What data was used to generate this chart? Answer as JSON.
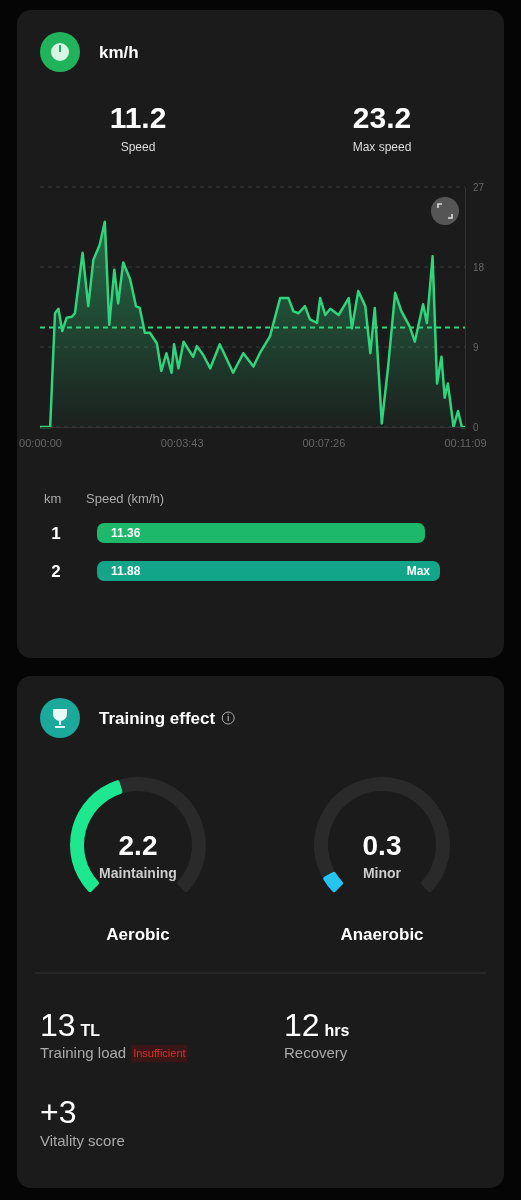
{
  "chart_data": [
    {
      "type": "area",
      "title": "km/h",
      "annotations": [
        "11.2",
        "Speed",
        "23.2",
        "Max speed"
      ],
      "x": [
        0,
        16,
        23.6,
        29,
        35,
        42,
        50,
        55,
        67,
        76,
        84,
        94,
        102,
        109,
        117,
        123,
        131,
        142,
        151,
        157,
        165,
        173,
        184,
        191,
        199,
        207,
        211,
        218,
        226,
        241,
        247,
        257,
        268,
        283,
        304,
        320,
        336,
        346,
        362,
        378,
        391,
        399,
        407,
        417,
        425,
        436,
        441,
        449,
        457,
        470,
        486,
        491,
        501,
        512,
        520,
        527,
        538,
        548,
        559,
        569,
        582,
        590,
        603,
        609,
        618,
        625,
        632,
        637,
        642,
        651,
        658,
        664,
        669
      ],
      "series": [
        {
          "color": "#2fd47c",
          "values": [
            0,
            0,
            12.8,
            13.3,
            10.8,
            12.3,
            12.4,
            12.8,
            19.6,
            13.6,
            18.8,
            20.5,
            23.1,
            11.5,
            17.7,
            13.9,
            18.5,
            16.6,
            13.6,
            13.4,
            10.6,
            10.6,
            9.4,
            6.3,
            8.3,
            6.1,
            9.3,
            6.6,
            9.6,
            7.9,
            9.1,
            8.1,
            6.6,
            9.3,
            6.1,
            8.3,
            6.8,
            8.3,
            10.2,
            14.5,
            14.5,
            13,
            12.8,
            13.6,
            12.1,
            11.7,
            14.5,
            12.6,
            13.3,
            12.6,
            14.5,
            11.1,
            15.3,
            13.6,
            8.3,
            13.4,
            0.4,
            6.8,
            15.1,
            13,
            11.3,
            9.6,
            13.8,
            11.7,
            19.2,
            4.9,
            7.9,
            3.3,
            4.9,
            0,
            1.8,
            0,
            0
          ]
        }
      ],
      "xlim": [
        0,
        669
      ],
      "xticks": [
        {
          "value": 0,
          "label": "00:00:00"
        },
        {
          "value": 223,
          "label": "00:03:43"
        },
        {
          "value": 446,
          "label": "00:07:26"
        },
        {
          "value": 669,
          "label": "00:11:09"
        }
      ],
      "ylim": [
        0,
        27
      ],
      "yticks": [
        0,
        9,
        18,
        27
      ],
      "grid": "y",
      "ref_lines": [
        {
          "axis": "y",
          "value": 11.2,
          "color": "#2fd47c",
          "line_style": "dashed"
        }
      ]
    },
    {
      "type": "bar",
      "orientation": "horizontal",
      "xlabel": "Speed (km/h)",
      "ylabel": "km",
      "categories": [
        "1",
        "2"
      ],
      "values": [
        11.36,
        11.88
      ],
      "colors": [
        "#1db86a",
        "#12a58a"
      ],
      "data_labels": true,
      "annotations": [
        {
          "text": "Max",
          "x": 11.88,
          "y": "2"
        }
      ]
    },
    {
      "type": "donut",
      "title": "Aerobic",
      "subtitle": "Maintaining",
      "categories": [
        null,
        null
      ],
      "values": [
        44,
        56
      ],
      "colors": [
        "#1de890",
        "#2a2a2a"
      ],
      "annotations": [
        "2.2"
      ]
    },
    {
      "type": "donut",
      "title": "Anaerobic",
      "subtitle": "Minor",
      "categories": [
        null,
        null
      ],
      "values": [
        6,
        94
      ],
      "colors": [
        "#27c3f0",
        "#2a2a2a"
      ],
      "annotations": [
        "0.3"
      ]
    },
    {
      "type": "other",
      "title": "Training effect",
      "annotations": [
        "13",
        "TL",
        "Training load",
        "Insufficient",
        "12",
        "hrs",
        "Recovery",
        "+3",
        "Vitality score"
      ]
    }
  ]
}
